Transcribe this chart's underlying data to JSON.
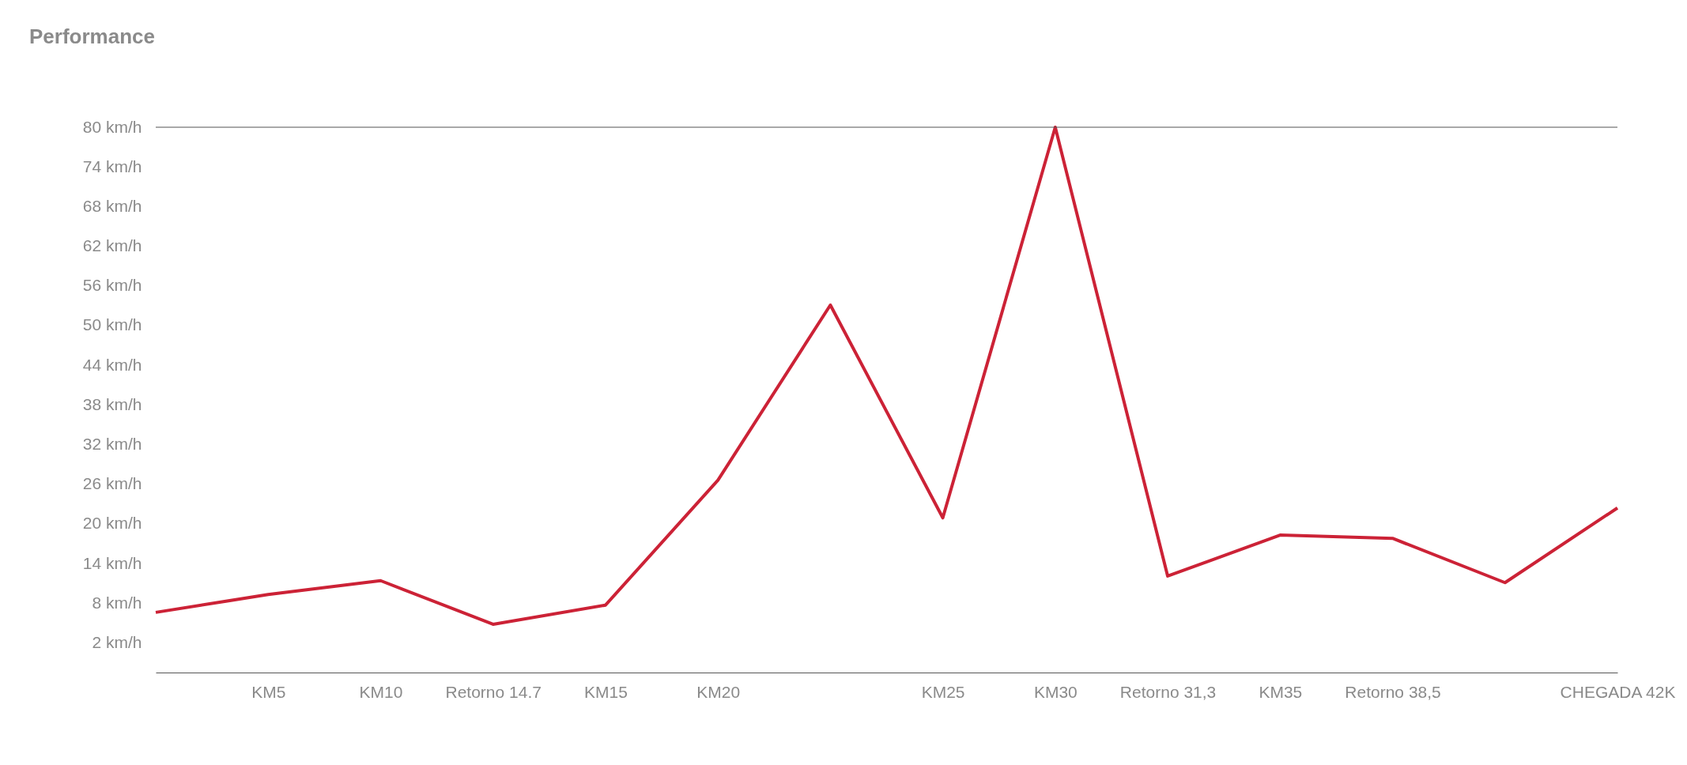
{
  "chart_data": {
    "type": "line",
    "title": "Performance",
    "categories": [
      null,
      "KM5",
      "KM10",
      "Retorno 14.7",
      "KM15",
      "KM20",
      null,
      "KM25",
      "KM30",
      "Retorno 31,3",
      "KM35",
      "Retorno 38,5",
      null,
      "CHEGADA 42K"
    ],
    "series": [
      {
        "color": "#cc2236",
        "values": [
          6.6,
          9.3,
          11.4,
          4.8,
          7.7,
          26.6,
          53.1,
          20.9,
          80,
          12.1,
          18.3,
          17.8,
          11.1,
          22.4
        ]
      }
    ],
    "ylim": [
      -2.5,
      80
    ],
    "yticks": [
      {
        "value": 2,
        "label": "2 km/h"
      },
      {
        "value": 8,
        "label": "8 km/h"
      },
      {
        "value": 14,
        "label": "14 km/h"
      },
      {
        "value": 20,
        "label": "20 km/h"
      },
      {
        "value": 26,
        "label": "26 km/h"
      },
      {
        "value": 32,
        "label": "32 km/h"
      },
      {
        "value": 38,
        "label": "38 km/h"
      },
      {
        "value": 44,
        "label": "44 km/h"
      },
      {
        "value": 50,
        "label": "50 km/h"
      },
      {
        "value": 56,
        "label": "56 km/h"
      },
      {
        "value": 62,
        "label": "62 km/h"
      },
      {
        "value": 68,
        "label": "68 km/h"
      },
      {
        "value": 74,
        "label": "74 km/h"
      },
      {
        "value": 80,
        "label": "80 km/h"
      }
    ],
    "ref_lines": [
      {
        "axis": "y",
        "value": 80,
        "color": "#555555"
      }
    ],
    "grid": false,
    "marker": "none",
    "line_style": "solid"
  }
}
